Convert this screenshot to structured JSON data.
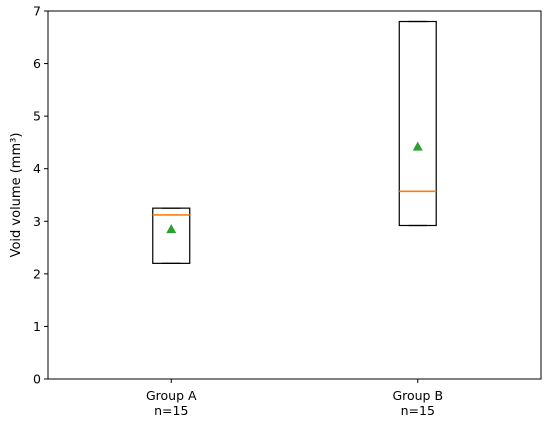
{
  "chart_data": {
    "type": "boxplot",
    "ylabel": "Void volume (mm³)",
    "ylim": [
      0,
      7
    ],
    "yticks": [
      0,
      1,
      2,
      3,
      4,
      5,
      6,
      7
    ],
    "categories": [
      "Group A\nn=15",
      "Group B\nn=15"
    ],
    "groups": [
      {
        "label": "Group A",
        "n_label": "n=15",
        "q1": 2.2,
        "median": 3.12,
        "q3": 3.25,
        "whisker_low": 2.2,
        "whisker_high": 3.25,
        "mean": 2.85
      },
      {
        "label": "Group B",
        "n_label": "n=15",
        "q1": 2.92,
        "median": 3.57,
        "q3": 6.8,
        "whisker_low": 2.92,
        "whisker_high": 6.8,
        "mean": 4.42
      }
    ],
    "grid": false,
    "colors": {
      "box": "#000000",
      "median": "#ff7f0e",
      "mean": "#2ca02c"
    }
  }
}
